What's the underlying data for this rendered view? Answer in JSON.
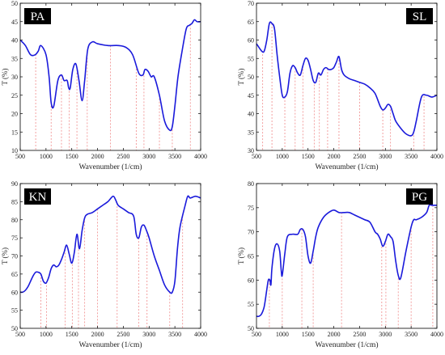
{
  "chart_data": [
    {
      "type": "line",
      "label": "PA",
      "xlabel": "Wavenumber (1/cm)",
      "ylabel": "T (%)",
      "xlim": [
        500,
        4000
      ],
      "ylim": [
        10,
        50
      ],
      "xticks": [
        500,
        1000,
        1500,
        2000,
        2500,
        3000,
        3500,
        4000
      ],
      "yticks": [
        10,
        15,
        20,
        25,
        30,
        35,
        40,
        45,
        50
      ],
      "series": [
        {
          "x": [
            500,
            600,
            700,
            790,
            850,
            900,
            1000,
            1060,
            1100,
            1150,
            1230,
            1300,
            1350,
            1410,
            1440,
            1470,
            1520,
            1580,
            1640,
            1700,
            1750,
            1810,
            1900,
            2000,
            2200,
            2400,
            2550,
            2680,
            2800,
            2880,
            2920,
            2980,
            3040,
            3100,
            3200,
            3300,
            3400,
            3450,
            3500,
            3560,
            3640,
            3720,
            3780,
            3830,
            3880,
            3930,
            4000
          ],
          "y": [
            40,
            38.5,
            36,
            36,
            37,
            38.5,
            36,
            30,
            23,
            22,
            29,
            30.5,
            29,
            29,
            27,
            27,
            32,
            33.5,
            29,
            23.5,
            29,
            37.5,
            39.5,
            39,
            38.5,
            38.5,
            38,
            36,
            31,
            30.5,
            32,
            31.5,
            30,
            30,
            25,
            18,
            15.5,
            16.5,
            22,
            30,
            37,
            43,
            44,
            44.5,
            45.5,
            45,
            45
          ]
        }
      ],
      "markers": [
        800,
        1100,
        1300,
        1450,
        1600,
        1800,
        2250,
        2750,
        2900,
        3200,
        3450,
        3800
      ]
    },
    {
      "type": "line",
      "label": "SL",
      "xlabel": "Wavenumber (1/cm)",
      "ylabel": "T (%)",
      "xlim": [
        500,
        4000
      ],
      "ylim": [
        30,
        70
      ],
      "xticks": [
        500,
        1000,
        1500,
        2000,
        2500,
        3000,
        3500,
        4000
      ],
      "yticks": [
        30,
        35,
        40,
        45,
        50,
        55,
        60,
        65,
        70
      ],
      "series": [
        {
          "x": [
            500,
            600,
            650,
            700,
            750,
            800,
            850,
            900,
            950,
            1000,
            1050,
            1100,
            1150,
            1200,
            1250,
            1300,
            1350,
            1400,
            1450,
            1500,
            1550,
            1600,
            1650,
            1700,
            1750,
            1800,
            1850,
            1900,
            1950,
            2000,
            2050,
            2100,
            2150,
            2200,
            2300,
            2400,
            2500,
            2600,
            2700,
            2800,
            2900,
            2950,
            3000,
            3050,
            3100,
            3150,
            3200,
            3300,
            3400,
            3500,
            3550,
            3600,
            3700,
            3800,
            3900,
            4000
          ],
          "y": [
            59,
            57,
            57,
            60,
            64.5,
            64.5,
            63,
            56,
            50,
            45,
            44.5,
            46,
            51,
            53,
            52.5,
            51,
            50.5,
            53,
            55,
            54.5,
            52,
            49,
            48.5,
            51,
            50.5,
            52,
            52.5,
            52,
            52,
            52.5,
            54,
            55.5,
            52,
            50.5,
            49.5,
            49,
            48.5,
            48,
            47,
            45.5,
            42,
            41,
            41.5,
            42.5,
            42,
            40,
            38,
            36,
            34.5,
            34,
            35,
            38,
            44.5,
            45,
            44.5,
            45
          ]
        }
      ],
      "markers": [
        620,
        800,
        1050,
        1250,
        1400,
        1620,
        1720,
        1880,
        2100,
        2500,
        2950,
        3100,
        3550,
        3750
      ]
    },
    {
      "type": "line",
      "label": "KN",
      "xlabel": "Wavenumber (1/cm)",
      "ylabel": "T (%)",
      "xlim": [
        500,
        4000
      ],
      "ylim": [
        50,
        90
      ],
      "xticks": [
        500,
        1000,
        1500,
        2000,
        2500,
        3000,
        3500,
        4000
      ],
      "yticks": [
        50,
        55,
        60,
        65,
        70,
        75,
        80,
        85,
        90
      ],
      "series": [
        {
          "x": [
            500,
            550,
            600,
            650,
            700,
            750,
            800,
            850,
            900,
            950,
            1000,
            1050,
            1100,
            1150,
            1200,
            1250,
            1300,
            1350,
            1400,
            1450,
            1500,
            1550,
            1600,
            1650,
            1700,
            1750,
            1800,
            1900,
            2000,
            2100,
            2200,
            2300,
            2350,
            2400,
            2500,
            2600,
            2700,
            2750,
            2800,
            2850,
            2900,
            2950,
            3000,
            3100,
            3200,
            3300,
            3400,
            3450,
            3500,
            3550,
            3600,
            3700,
            3750,
            3800,
            3900,
            4000
          ],
          "y": [
            60,
            60,
            60.5,
            61.5,
            63,
            64.5,
            65.5,
            65.5,
            65,
            63,
            62.5,
            64,
            66.5,
            67.5,
            67,
            67.5,
            69,
            71,
            73,
            70.5,
            68,
            71,
            76,
            72,
            77,
            80.5,
            81.5,
            82,
            83,
            84,
            85,
            86.5,
            85.5,
            84,
            83,
            82,
            81,
            76,
            75,
            78,
            78.5,
            77,
            75,
            70,
            66,
            62,
            60,
            60,
            63,
            72,
            78,
            84,
            86.5,
            86,
            86.5,
            86
          ]
        }
      ],
      "markers": [
        900,
        1010,
        1370,
        1510,
        1630,
        1750,
        2000,
        2380,
        2800,
        2960,
        3400,
        3650
      ]
    },
    {
      "type": "line",
      "label": "PG",
      "xlabel": "Wavenumber (1/cm)",
      "ylabel": "T (%)",
      "xlim": [
        500,
        4000
      ],
      "ylim": [
        50,
        80
      ],
      "xticks": [
        500,
        1000,
        1500,
        2000,
        2500,
        3000,
        3500,
        4000
      ],
      "yticks": [
        50,
        55,
        60,
        65,
        70,
        75,
        80
      ],
      "series": [
        {
          "x": [
            500,
            550,
            600,
            650,
            700,
            730,
            760,
            780,
            800,
            850,
            900,
            950,
            980,
            1000,
            1050,
            1100,
            1200,
            1300,
            1350,
            1400,
            1450,
            1500,
            1550,
            1600,
            1650,
            1700,
            1800,
            1900,
            2000,
            2100,
            2200,
            2300,
            2400,
            2500,
            2600,
            2700,
            2800,
            2850,
            2900,
            2950,
            3000,
            3050,
            3100,
            3150,
            3200,
            3250,
            3300,
            3400,
            3500,
            3550,
            3600,
            3700,
            3800,
            3850,
            3900,
            4000
          ],
          "y": [
            52.5,
            52.5,
            53,
            54.5,
            58,
            60,
            60,
            59,
            62.5,
            66.5,
            67.5,
            66,
            62,
            61,
            65.5,
            69,
            69.5,
            69.5,
            70.5,
            70.5,
            69,
            65,
            63.5,
            66,
            69,
            71,
            73,
            74,
            74.5,
            74,
            74,
            74,
            73.5,
            73,
            72.5,
            72,
            70,
            69.5,
            68.5,
            67,
            68,
            69.5,
            69,
            68,
            64,
            61,
            60.5,
            66,
            71,
            72.5,
            72.5,
            73,
            74,
            75.5,
            75.5,
            75.5
          ]
        }
      ],
      "markers": [
        750,
        1000,
        1380,
        1600,
        2150,
        2930,
        3010,
        3250,
        3500,
        3920
      ]
    }
  ]
}
